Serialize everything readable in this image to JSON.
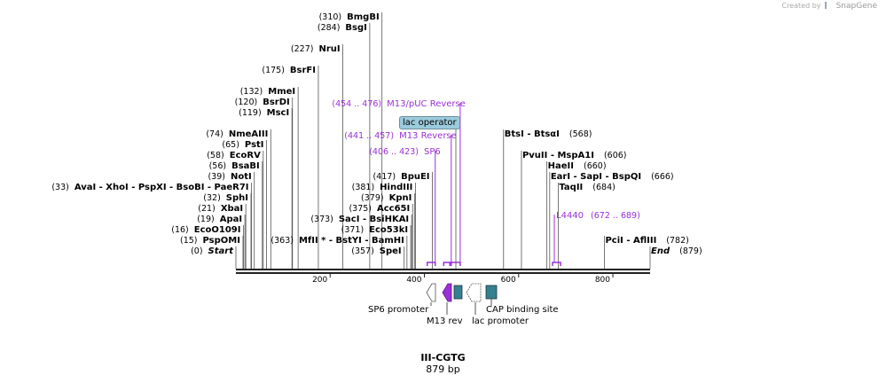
{
  "credit": {
    "prefix": "Created by",
    "brand": "SnapGene"
  },
  "plasmid": {
    "name": "III-CGTG",
    "size": "879 bp",
    "length": 879
  },
  "axis": {
    "ticks": [
      200,
      400,
      600,
      800
    ]
  },
  "colors": {
    "primer": "#9b30d9",
    "feature_teal": "#35808f",
    "op_fill": "#9bcbdc",
    "line": "#555555"
  },
  "sites": [
    {
      "num": "(0)",
      "parts": [
        "Start"
      ],
      "pos": [
        0
      ],
      "style": "italic",
      "row": 0
    },
    {
      "num": "(15)",
      "parts": [
        "PspOMI"
      ],
      "pos": [
        15
      ],
      "row": 1
    },
    {
      "num": "(16)",
      "parts": [
        "EcoO109I"
      ],
      "pos": [
        16
      ],
      "row": 2
    },
    {
      "num": "(19)",
      "parts": [
        "ApaI"
      ],
      "pos": [
        19
      ],
      "row": 3
    },
    {
      "num": "(21)",
      "parts": [
        "XbaI"
      ],
      "pos": [
        21
      ],
      "row": 4
    },
    {
      "num": "(32)",
      "parts": [
        "SphI"
      ],
      "pos": [
        32
      ],
      "row": 5
    },
    {
      "num": "(33)",
      "parts": [
        "AvaI",
        "XhoI",
        "PspXI",
        "BsoBI",
        "PaeR7I"
      ],
      "pos": [
        33
      ],
      "row": 6
    },
    {
      "num": "(39)",
      "parts": [
        "NotI"
      ],
      "pos": [
        39
      ],
      "row": 7
    },
    {
      "num": "(56)",
      "parts": [
        "BsaBI"
      ],
      "pos": [
        56
      ],
      "row": 8
    },
    {
      "num": "(58)",
      "parts": [
        "EcoRV"
      ],
      "pos": [
        58
      ],
      "row": 9
    },
    {
      "num": "(65)",
      "parts": [
        "PstI"
      ],
      "pos": [
        65
      ],
      "row": 10
    },
    {
      "num": "(74)",
      "parts": [
        "NmeAIII"
      ],
      "pos": [
        74
      ],
      "row": 11
    },
    {
      "num": "(119)",
      "parts": [
        "MscI"
      ],
      "pos": [
        119
      ],
      "row": 13
    },
    {
      "num": "(120)",
      "parts": [
        "BsrDI"
      ],
      "pos": [
        120
      ],
      "row": 14
    },
    {
      "num": "(132)",
      "parts": [
        "MmeI"
      ],
      "pos": [
        132
      ],
      "row": 15
    },
    {
      "num": "(175)",
      "parts": [
        "BsrFI"
      ],
      "pos": [
        175
      ],
      "row": 17
    },
    {
      "num": "(227)",
      "parts": [
        "NruI"
      ],
      "pos": [
        227
      ],
      "row": 19
    },
    {
      "num": "(284)",
      "parts": [
        "BsgI"
      ],
      "pos": [
        284
      ],
      "row": 21
    },
    {
      "num": "(310)",
      "parts": [
        "BmgBI"
      ],
      "pos": [
        310
      ],
      "row": 22
    },
    {
      "num": "(363)",
      "parts": [
        "MfII *",
        "BstYI",
        "BamHI"
      ],
      "pos": [
        363
      ],
      "row": 1,
      "side": "mid"
    },
    {
      "num": "(357)",
      "parts": [
        "SpeI"
      ],
      "pos": [
        357
      ],
      "row": 0,
      "side": "mid"
    },
    {
      "num": "(371)",
      "parts": [
        "Eco53kI"
      ],
      "pos": [
        371
      ],
      "row": 2,
      "side": "mid"
    },
    {
      "num": "(373)",
      "parts": [
        "SacI",
        "BsiHKAI"
      ],
      "pos": [
        373
      ],
      "row": 3,
      "side": "mid"
    },
    {
      "num": "(375)",
      "parts": [
        "Acc65I"
      ],
      "pos": [
        375
      ],
      "row": 4,
      "side": "mid"
    },
    {
      "num": "(379)",
      "parts": [
        "KpnI"
      ],
      "pos": [
        379
      ],
      "row": 5,
      "side": "mid"
    },
    {
      "num": "(381)",
      "parts": [
        "HindIII"
      ],
      "pos": [
        381
      ],
      "row": 6,
      "side": "mid"
    },
    {
      "num": "(417)",
      "parts": [
        "BpuEI"
      ],
      "pos": [
        417
      ],
      "row": 7,
      "side": "mid"
    },
    {
      "num": "(568)",
      "parts": [
        "BtsI",
        "BtsαI"
      ],
      "pos": [
        568
      ],
      "row": 11,
      "side": "right"
    },
    {
      "num": "(606)",
      "parts": [
        "PvuII",
        "MspA1I"
      ],
      "pos": [
        606
      ],
      "row": 9,
      "side": "right"
    },
    {
      "num": "(660)",
      "parts": [
        "HaeII"
      ],
      "pos": [
        660
      ],
      "row": 8,
      "side": "right"
    },
    {
      "num": "(666)",
      "parts": [
        "EarI",
        "SapI",
        "BspQI"
      ],
      "pos": [
        666
      ],
      "row": 7,
      "side": "right"
    },
    {
      "num": "(684)",
      "parts": [
        "TaqII"
      ],
      "pos": [
        684
      ],
      "row": 6,
      "side": "right"
    },
    {
      "num": "(782)",
      "parts": [
        "PciI",
        "AflIII"
      ],
      "pos": [
        782
      ],
      "row": 1,
      "side": "right"
    },
    {
      "num": "(879)",
      "parts": [
        "End"
      ],
      "pos": [
        879
      ],
      "style": "italic",
      "row": 0,
      "side": "right"
    }
  ],
  "primers": [
    {
      "name": "M13/pUC Reverse",
      "range": "(454 .. 476)",
      "start": 454,
      "end": 476
    },
    {
      "name": "M13 Reverse",
      "range": "(441 .. 457)",
      "start": 441,
      "end": 457
    },
    {
      "name": "SP6",
      "range": "(406 .. 423)",
      "start": 406,
      "end": 423
    },
    {
      "name": "L4440",
      "range": "(672 .. 689)",
      "start": 672,
      "end": 689
    }
  ],
  "features": {
    "lac_operator": "lac operator",
    "sp6_promoter": "SP6 promoter",
    "m13_rev": "M13 rev",
    "lac_promoter": "lac promoter",
    "cap_site": "CAP binding site"
  }
}
